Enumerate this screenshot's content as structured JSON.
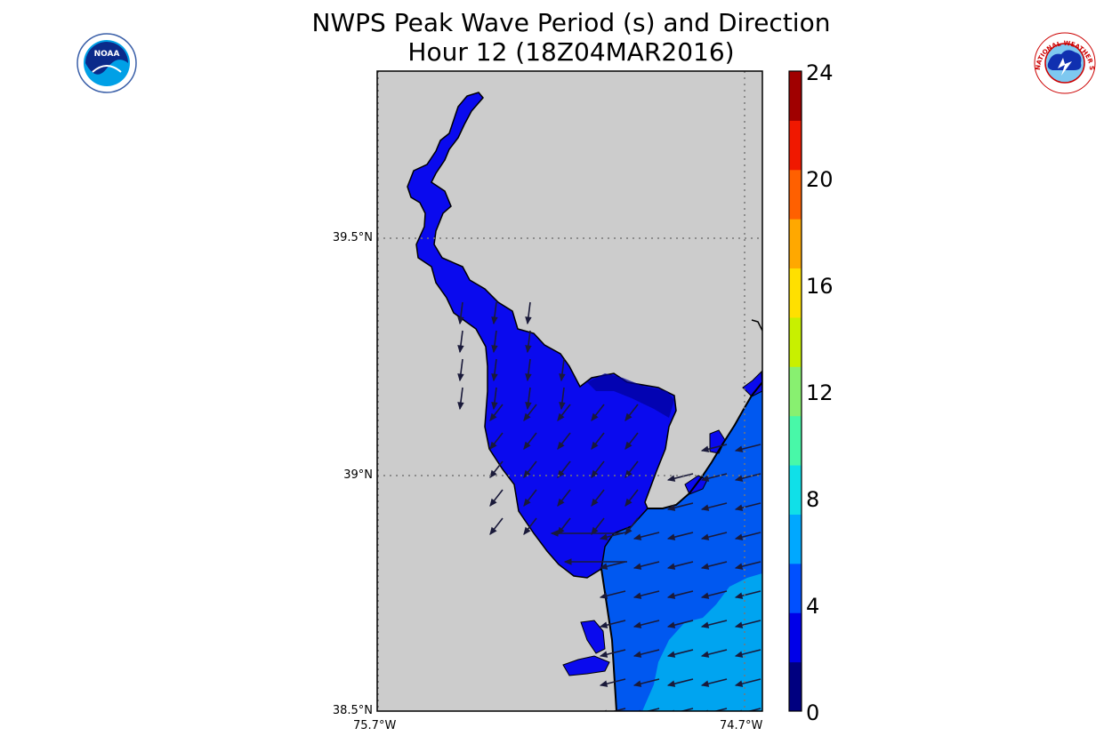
{
  "title": {
    "line1": "NWPS Peak Wave Period (s) and Direction",
    "line2": "Hour 12 (18Z04MAR2016)"
  },
  "logos": {
    "noaa_text": "NOAA",
    "nws_text": "NATIONAL WEATHER SERVICE"
  },
  "axes": {
    "lat_labels": [
      "39.5°N",
      "39°N",
      "38.5°N"
    ],
    "lon_labels": [
      "75.7°W",
      "74.7°W"
    ],
    "lat_values": [
      39.5,
      39.0,
      38.5
    ],
    "lon_range": [
      -75.7,
      -74.7
    ],
    "lat_range": [
      38.5,
      39.85
    ],
    "gridlines": "dotted"
  },
  "colorbar": {
    "min": 0,
    "max": 24,
    "tick_labels": [
      "24",
      "20",
      "16",
      "12",
      "8",
      "4",
      "0"
    ],
    "colors": [
      "#000080",
      "#0000e8",
      "#0050ff",
      "#00a8ff",
      "#10e0e8",
      "#48f8a8",
      "#88f070",
      "#c8f000",
      "#ffe000",
      "#ffa800",
      "#ff6000",
      "#f01800",
      "#a00000"
    ]
  },
  "colors": {
    "land": "#cccccc",
    "water_0_2": "#000099",
    "water_2_4": "#0a0aee",
    "water_4_6": "#0058f0",
    "water_6_8": "#00a4f0"
  }
}
